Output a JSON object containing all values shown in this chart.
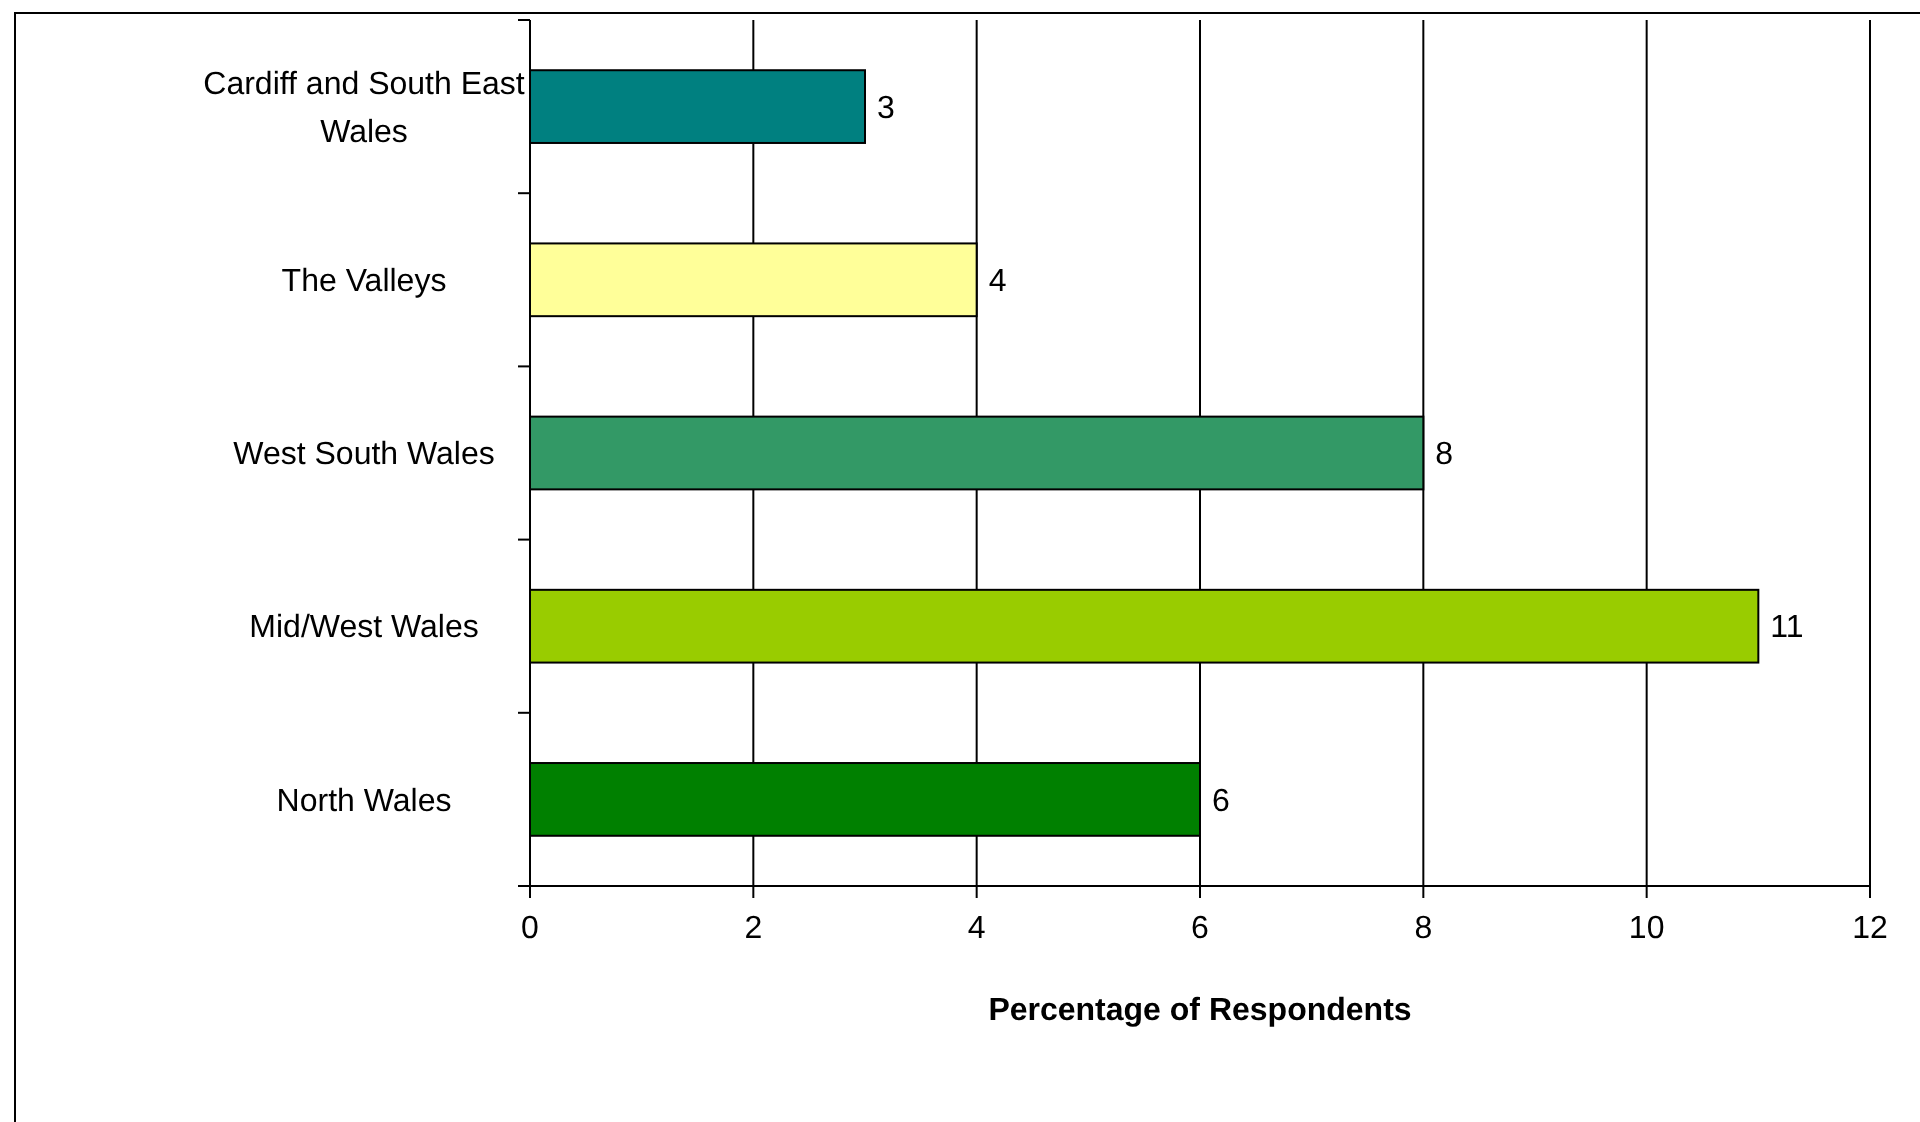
{
  "chart_data": {
    "type": "bar",
    "orientation": "horizontal",
    "xlabel": "Percentage of Respondents",
    "categories": [
      "Cardiff and South East Wales",
      "The Valleys",
      "West South Wales",
      "Mid/West Wales",
      "North Wales"
    ],
    "values": [
      3,
      4,
      8,
      11,
      6
    ],
    "colors": [
      "#008080",
      "#ffff99",
      "#339966",
      "#99cc00",
      "#008000"
    ],
    "xlim": [
      0,
      12
    ],
    "xticks": [
      0,
      2,
      4,
      6,
      8,
      10,
      12
    ],
    "grid": "x",
    "data_labels": true
  }
}
